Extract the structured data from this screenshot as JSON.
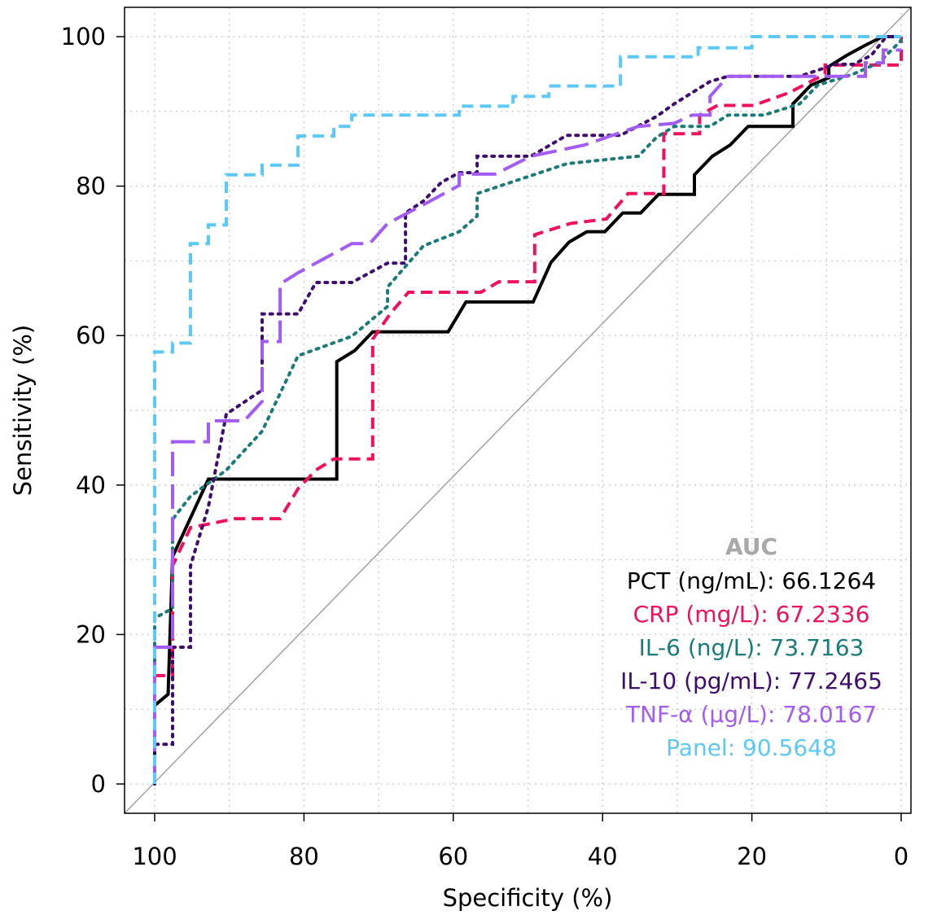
{
  "chart_data": {
    "type": "line",
    "subtype": "roc",
    "xlabel": "Specificity (%)",
    "ylabel": "Sensitivity (%)",
    "xlim": [
      100,
      0
    ],
    "ylim": [
      0,
      100
    ],
    "x_ticks": [
      100,
      80,
      60,
      40,
      20,
      0
    ],
    "y_ticks": [
      0,
      20,
      40,
      60,
      80,
      100
    ],
    "grid": true,
    "reference_line": "diagonal",
    "legend_title": "AUC",
    "legend_title_color": "#a8a8a8",
    "legend_position": "bottom-right",
    "series": [
      {
        "name": "PCT (ng/mL)",
        "auc": "66.1264",
        "color": "#000000",
        "dash": "solid",
        "points": [
          [
            100,
            0
          ],
          [
            100,
            10.5
          ],
          [
            98.2,
            12
          ],
          [
            97.6,
            30.4
          ],
          [
            95.2,
            35.6
          ],
          [
            92.8,
            40.8
          ],
          [
            75.6,
            40.8
          ],
          [
            75.6,
            56.5
          ],
          [
            73.2,
            58
          ],
          [
            70.8,
            60.5
          ],
          [
            60.7,
            60.5
          ],
          [
            58.3,
            64.5
          ],
          [
            49.3,
            64.5
          ],
          [
            46.9,
            69.8
          ],
          [
            44.5,
            72.5
          ],
          [
            42.1,
            73.9
          ],
          [
            39.7,
            73.9
          ],
          [
            37.3,
            76.4
          ],
          [
            34.9,
            76.4
          ],
          [
            32.5,
            78.9
          ],
          [
            27.7,
            78.9
          ],
          [
            27.7,
            81.5
          ],
          [
            25.3,
            84
          ],
          [
            22.9,
            85.5
          ],
          [
            20.5,
            88
          ],
          [
            14.5,
            88
          ],
          [
            14.5,
            91
          ],
          [
            12.1,
            93.5
          ],
          [
            9.7,
            94.5
          ],
          [
            9.7,
            96
          ],
          [
            7.3,
            97.5
          ],
          [
            4.9,
            98.8
          ],
          [
            2.5,
            100
          ],
          [
            0,
            100
          ]
        ]
      },
      {
        "name": "CRP (mg/L)",
        "auc": "67.2336",
        "color": "#f0105d",
        "dash": "dashed",
        "points": [
          [
            100,
            0
          ],
          [
            100,
            14.5
          ],
          [
            97.6,
            14.5
          ],
          [
            97.6,
            29.2
          ],
          [
            95.2,
            34.3
          ],
          [
            89.2,
            35.5
          ],
          [
            83.2,
            35.5
          ],
          [
            80.8,
            39.5
          ],
          [
            78.4,
            42
          ],
          [
            76,
            43.5
          ],
          [
            70.8,
            43.5
          ],
          [
            70.8,
            59.5
          ],
          [
            68.4,
            63
          ],
          [
            66,
            65.8
          ],
          [
            56.3,
            65.8
          ],
          [
            53.9,
            67.2
          ],
          [
            49.1,
            67.2
          ],
          [
            49.1,
            73.5
          ],
          [
            44.3,
            75
          ],
          [
            39.5,
            75.6
          ],
          [
            36.6,
            79
          ],
          [
            31.8,
            79
          ],
          [
            31.8,
            87
          ],
          [
            27,
            87
          ],
          [
            27,
            89.5
          ],
          [
            24.6,
            90.8
          ],
          [
            19.8,
            90.8
          ],
          [
            15,
            92.5
          ],
          [
            10.2,
            95
          ],
          [
            10.2,
            96.2
          ],
          [
            0,
            96.2
          ],
          [
            0,
            100
          ]
        ]
      },
      {
        "name": "IL-6 (ng/L)",
        "auc": "73.7163",
        "color": "#1b7a7a",
        "dash": "dotted",
        "points": [
          [
            100,
            0
          ],
          [
            100,
            22.2
          ],
          [
            97.6,
            23.5
          ],
          [
            97.6,
            35.4
          ],
          [
            95.2,
            38.5
          ],
          [
            90.4,
            42
          ],
          [
            85.6,
            47.2
          ],
          [
            80.8,
            57.3
          ],
          [
            73.6,
            59.9
          ],
          [
            68.8,
            63.9
          ],
          [
            68.8,
            66.5
          ],
          [
            64,
            72
          ],
          [
            59.2,
            73.9
          ],
          [
            56.8,
            76
          ],
          [
            56.8,
            79
          ],
          [
            52,
            80.6
          ],
          [
            44.8,
            83
          ],
          [
            35.2,
            84
          ],
          [
            32.8,
            86.5
          ],
          [
            30.4,
            88
          ],
          [
            25.6,
            88
          ],
          [
            23.2,
            89.5
          ],
          [
            18.4,
            89.5
          ],
          [
            13.6,
            91
          ],
          [
            11.2,
            93.5
          ],
          [
            6.4,
            95
          ],
          [
            3,
            96.5
          ],
          [
            0,
            99.5
          ]
        ]
      },
      {
        "name": "IL-10 (pg/mL)",
        "auc": "77.2465",
        "color": "#3f0c6f",
        "dash": "dotted",
        "points": [
          [
            100,
            0
          ],
          [
            100,
            5.3
          ],
          [
            97.6,
            5.3
          ],
          [
            97.6,
            18.3
          ],
          [
            95.2,
            18.3
          ],
          [
            95.2,
            29.2
          ],
          [
            92.8,
            37.1
          ],
          [
            90.4,
            49.5
          ],
          [
            85.6,
            52.7
          ],
          [
            85.6,
            62.9
          ],
          [
            80.8,
            62.9
          ],
          [
            78.4,
            67.1
          ],
          [
            73.6,
            67.1
          ],
          [
            68.8,
            69.7
          ],
          [
            66.4,
            69.7
          ],
          [
            66.4,
            76.4
          ],
          [
            64,
            78
          ],
          [
            61.6,
            80.5
          ],
          [
            59.2,
            81.8
          ],
          [
            56.8,
            81.8
          ],
          [
            56.8,
            84
          ],
          [
            49.6,
            84
          ],
          [
            44.8,
            86.8
          ],
          [
            37.6,
            86.8
          ],
          [
            32.8,
            89.3
          ],
          [
            30.4,
            91
          ],
          [
            25.6,
            94
          ],
          [
            23.2,
            94.7
          ],
          [
            13.6,
            94.7
          ],
          [
            8.8,
            96.3
          ],
          [
            6.4,
            96.3
          ],
          [
            4,
            97.5
          ],
          [
            2,
            100
          ],
          [
            0,
            100
          ]
        ]
      },
      {
        "name": "TNF-α (µg/L)",
        "auc": "78.0167",
        "color": "#a35cf2",
        "dash": "longdash",
        "points": [
          [
            100,
            0
          ],
          [
            100,
            18.3
          ],
          [
            97.6,
            18.3
          ],
          [
            97.6,
            45.8
          ],
          [
            92.8,
            45.8
          ],
          [
            92.8,
            48.6
          ],
          [
            88,
            48.6
          ],
          [
            85.6,
            51.2
          ],
          [
            85.6,
            59.2
          ],
          [
            83.2,
            59.2
          ],
          [
            83.2,
            66.9
          ],
          [
            80.8,
            68.4
          ],
          [
            73.6,
            72.3
          ],
          [
            71.2,
            72.3
          ],
          [
            68.8,
            75
          ],
          [
            64,
            77.5
          ],
          [
            59.2,
            80.1
          ],
          [
            59.2,
            81.6
          ],
          [
            54.4,
            81.6
          ],
          [
            49.6,
            84
          ],
          [
            42.4,
            85.5
          ],
          [
            35.2,
            88
          ],
          [
            30.4,
            88.4
          ],
          [
            28,
            89.5
          ],
          [
            25.6,
            89.5
          ],
          [
            25.6,
            92
          ],
          [
            23.2,
            94.7
          ],
          [
            4.8,
            94.7
          ],
          [
            4.8,
            96.5
          ],
          [
            2.4,
            96.5
          ],
          [
            2.4,
            98.2
          ],
          [
            0,
            98.2
          ]
        ]
      },
      {
        "name": "Panel",
        "auc": "90.5648",
        "color": "#5bc8f5",
        "dash": "dashed",
        "points": [
          [
            100,
            0
          ],
          [
            100,
            57.8
          ],
          [
            97.6,
            57.8
          ],
          [
            97.6,
            59
          ],
          [
            95.2,
            59
          ],
          [
            95.2,
            72.3
          ],
          [
            92.8,
            72.3
          ],
          [
            92.8,
            74.8
          ],
          [
            90.4,
            74.8
          ],
          [
            90.4,
            81.5
          ],
          [
            85.6,
            81.5
          ],
          [
            85.6,
            82.8
          ],
          [
            80.8,
            82.8
          ],
          [
            80.8,
            86.7
          ],
          [
            76,
            86.7
          ],
          [
            76,
            88
          ],
          [
            73.6,
            88
          ],
          [
            73.6,
            89.5
          ],
          [
            59.2,
            89.5
          ],
          [
            59.2,
            90.7
          ],
          [
            52,
            90.7
          ],
          [
            52,
            92
          ],
          [
            47.2,
            92
          ],
          [
            47.2,
            93.4
          ],
          [
            37.6,
            93.4
          ],
          [
            37.6,
            94.6
          ],
          [
            37.6,
            96
          ],
          [
            37.6,
            97.3
          ],
          [
            27.2,
            97.3
          ],
          [
            27.2,
            98.5
          ],
          [
            20,
            98.5
          ],
          [
            20,
            100
          ],
          [
            0,
            100
          ]
        ]
      }
    ]
  }
}
